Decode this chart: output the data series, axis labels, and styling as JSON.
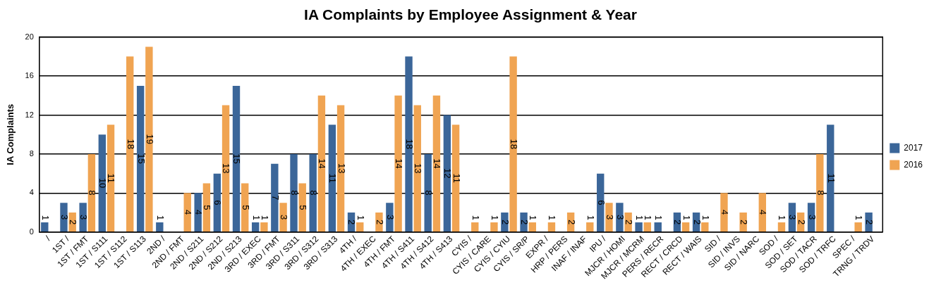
{
  "chart_data": {
    "type": "bar",
    "title": "IA Complaints by Employee Assignment & Year",
    "ylabel": "IA Complaints",
    "categories": [
      "/",
      "1ST /",
      "1ST / FMT",
      "1ST / S111",
      "1ST / S112",
      "1ST / S113",
      "2ND /",
      "2ND / FMT",
      "2ND / S211",
      "2ND / S212",
      "2ND / S213",
      "3RD / EXEC",
      "3RD / FMT",
      "3RD / S311",
      "3RD / S312",
      "3RD / S313",
      "4TH /",
      "4TH / EXEC",
      "4TH / FMT",
      "4TH / S411",
      "4TH / S412",
      "4TH / S413",
      "CYIS /",
      "CYIS / CARE",
      "CYIS / CYIU",
      "CYIS / SR/P",
      "EXPR /",
      "HRP / PERS",
      "INAF / INAF",
      "IPU /",
      "MJCR / HOMI",
      "MJCR / MCRM",
      "PERS / RECR",
      "RECT / CRCD",
      "RECT / WAIS",
      "SID /",
      "SID / INVS",
      "SID / NARC",
      "SOD /",
      "SOD / SET",
      "SOD / TACR",
      "SOD / TRFC",
      "SPEC /",
      "TRNG / TRDV"
    ],
    "series": [
      {
        "name": "2017",
        "color": "#3b6699",
        "values": [
          1,
          3,
          3,
          10,
          null,
          15,
          1,
          null,
          4,
          6,
          15,
          1,
          7,
          8,
          8,
          11,
          2,
          null,
          3,
          18,
          8,
          12,
          null,
          null,
          2,
          2,
          null,
          null,
          null,
          6,
          3,
          1,
          1,
          2,
          2,
          null,
          null,
          null,
          null,
          3,
          3,
          11,
          null,
          2
        ]
      },
      {
        "name": "2016",
        "color": "#f0a452",
        "values": [
          null,
          2,
          8,
          11,
          18,
          19,
          null,
          4,
          5,
          13,
          5,
          1,
          3,
          5,
          14,
          13,
          1,
          2,
          14,
          13,
          14,
          11,
          1,
          1,
          18,
          1,
          1,
          2,
          1,
          3,
          2,
          1,
          null,
          1,
          1,
          4,
          2,
          4,
          1,
          2,
          8,
          null,
          1,
          null
        ]
      }
    ],
    "ylim": [
      0,
      20
    ],
    "yticks": [
      0,
      4,
      8,
      12,
      16,
      20
    ],
    "grid": "y",
    "legend": "right",
    "data_labels": true
  }
}
